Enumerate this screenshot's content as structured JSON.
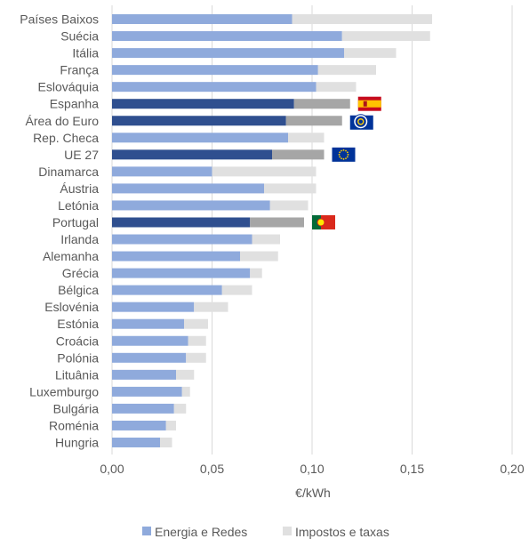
{
  "chart_data": {
    "type": "bar",
    "orientation": "horizontal",
    "stacked": true,
    "xlabel": "€/kWh",
    "xlim": [
      0,
      0.2
    ],
    "xticks": [
      "0,00",
      "0,05",
      "0,10",
      "0,15",
      "0,20"
    ],
    "grid": true,
    "legend_position": "bottom",
    "categories": [
      "Países Baixos",
      "Suécia",
      "Itália",
      "França",
      "Eslováquia",
      "Espanha",
      "Área do Euro",
      "Rep. Checa",
      "UE 27",
      "Dinamarca",
      "Áustria",
      "Letónia",
      "Portugal",
      "Irlanda",
      "Alemanha",
      "Grécia",
      "Bélgica",
      "Eslovénia",
      "Estónia",
      "Croácia",
      "Polónia",
      "Lituânia",
      "Luxemburgo",
      "Bulgária",
      "Roménia",
      "Hungria"
    ],
    "highlighted": [
      "Espanha",
      "Área do Euro",
      "UE 27",
      "Portugal"
    ],
    "series": [
      {
        "name": "Energia e Redes",
        "color": "#8faadc",
        "highlight_color": "#2f4f8f",
        "values": [
          0.09,
          0.115,
          0.116,
          0.103,
          0.102,
          0.091,
          0.087,
          0.088,
          0.08,
          0.05,
          0.076,
          0.079,
          0.069,
          0.07,
          0.064,
          0.069,
          0.055,
          0.041,
          0.036,
          0.038,
          0.037,
          0.032,
          0.035,
          0.031,
          0.027,
          0.024
        ]
      },
      {
        "name": "Impostos e taxas",
        "color": "#e0e0e0",
        "highlight_color": "#a6a6a6",
        "values": [
          0.07,
          0.044,
          0.026,
          0.029,
          0.02,
          0.028,
          0.028,
          0.018,
          0.026,
          0.052,
          0.026,
          0.019,
          0.027,
          0.014,
          0.019,
          0.006,
          0.015,
          0.017,
          0.012,
          0.009,
          0.01,
          0.009,
          0.004,
          0.006,
          0.005,
          0.006
        ]
      }
    ],
    "flags": {
      "Espanha": "spain-flag",
      "Área do Euro": "ecb-logo",
      "UE 27": "eu-flag",
      "Portugal": "portugal-flag"
    }
  }
}
